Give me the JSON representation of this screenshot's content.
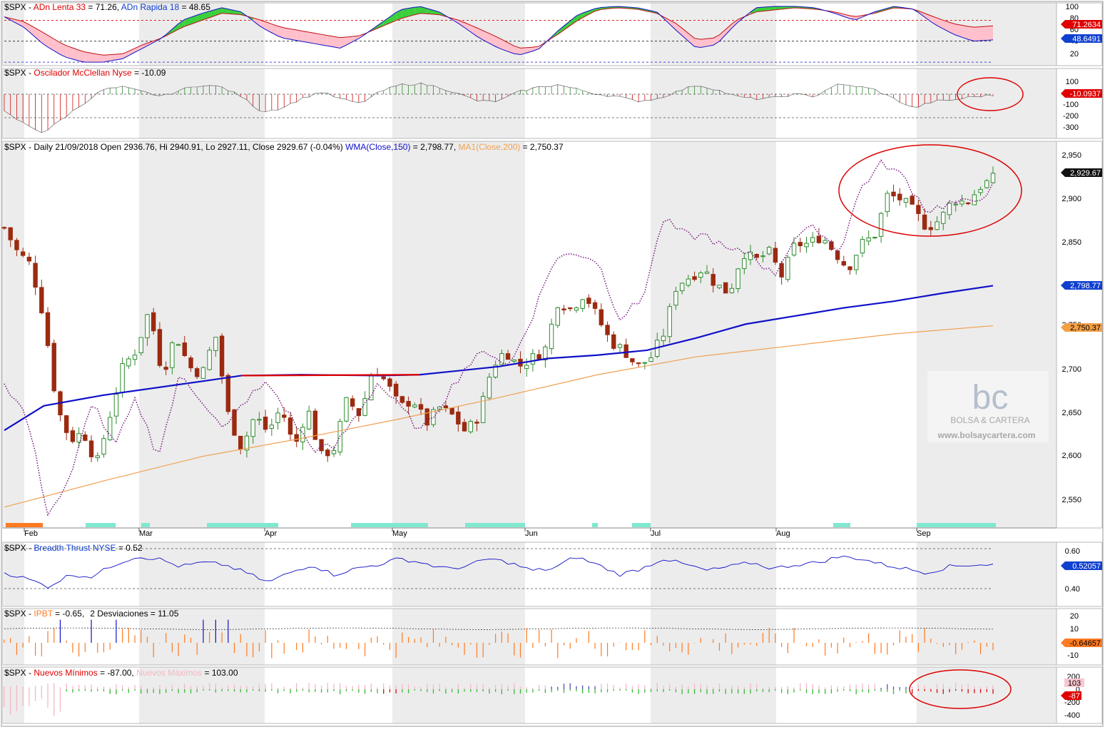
{
  "colors": {
    "up": "#2e8b2e",
    "down": "#9b2a10",
    "wma": "#1010c8",
    "ma": "#f0a050",
    "dotted": "#7a1a80",
    "panel_border": "#b8b8b8",
    "shade": "#ececec",
    "red_mark": "#dd0000",
    "label_red": "#e00000",
    "label_blue": "#1040d0",
    "label_black": "#111111",
    "label_orange": "#f3a045",
    "cyan": "#7fe8d0",
    "orange_bar": "#ff7a20"
  },
  "panels": {
    "adn": {
      "title_prefix": "$SPX - ",
      "title_a": "ADn Lenta 33",
      "title_a_val": " = 71.26, ",
      "title_b": "ADn Rapida 18",
      "title_b_val": " = 48.65",
      "ticks": [
        "100",
        "80",
        "60",
        "40",
        "20"
      ],
      "label_lenta": "71.2634",
      "label_rapida": "48.6491"
    },
    "mcclellan": {
      "title_prefix": "$SPX - ",
      "title_a": "Oscilador McClellan Nyse",
      "title_a_val": " = -10.09",
      "ticks": [
        "100",
        "0",
        "-100",
        "-200",
        "-300"
      ],
      "label_value": "-10.0937"
    },
    "price": {
      "title_prefix": "$SPX - Daily 21/09/2018 Open 2936.76, Hi 2940.91, Lo 2927.11, Close 2929.67 (-0.04%) ",
      "title_wma": "WMA(Close,150)",
      "title_wma_val": " = 2,798.77, ",
      "title_ma": "MA1(Close,200)",
      "title_ma_val": " = 2,750.37",
      "ticks": [
        "2,950",
        "2,900",
        "2,850",
        "2,800",
        "2,750",
        "2,700",
        "2,650",
        "2,600",
        "2,550"
      ],
      "label_close": "2,929.67",
      "label_wma": "2,798.77",
      "label_ma": "2,750.37",
      "months": [
        "Feb",
        "Mar",
        "Apr",
        "May",
        "Jun",
        "Jul",
        "Aug",
        "Sep"
      ],
      "watermark_logo": "bc",
      "watermark_name": "BOLSA & CARTERA",
      "watermark_url": "www.bolsaycartera.com"
    },
    "breadth": {
      "title_prefix": "$SPX - ",
      "title_a": "Breadth Thrust NYSE",
      "title_a_val": " = 0.52",
      "ticks": [
        "0.60",
        "0.50",
        "0.40"
      ],
      "label_value": "0.52057"
    },
    "ipbt": {
      "title_prefix": "$SPX - ",
      "title_a": "IPBT",
      "title_a_val": " = -0.65,",
      "title_b": "2 Desviaciones",
      "title_b_val": " = 11.05",
      "ticks": [
        "20",
        "10",
        "0",
        "-10"
      ],
      "label_value": "-0.64657"
    },
    "nuevos": {
      "title_prefix": "$SPX - ",
      "title_a": "Nuevos Mínimos",
      "title_a_val": " = -87.00, ",
      "title_b": "Nuevos Máximos",
      "title_b_val": " = 103.00",
      "ticks": [
        "200",
        "0",
        "-200",
        "-400"
      ],
      "label_max": "103",
      "label_min": "-87"
    }
  },
  "chart_data": {
    "type": "candlestick",
    "title": "$SPX - Daily 21/09/2018 Open 2936.76, Hi 2940.91, Lo 2927.11, Close 2929.67 (-0.04%)",
    "period_label": "Daily",
    "x_months": [
      "Feb",
      "Mar",
      "Apr",
      "May",
      "Jun",
      "Jul",
      "Aug",
      "Sep"
    ],
    "ylim": [
      2520,
      2960
    ],
    "y_ticks": [
      2550,
      2600,
      2650,
      2700,
      2750,
      2800,
      2850,
      2900,
      2950
    ],
    "last_bar": {
      "date": "21/09/2018",
      "open": 2936.76,
      "high": 2940.91,
      "low": 2927.11,
      "close": 2929.67,
      "change_pct": -0.04
    },
    "close_anchors": [
      2870,
      2840,
      2825,
      2760,
      2650,
      2610,
      2620,
      2580,
      2640,
      2700,
      2720,
      2770,
      2690,
      2740,
      2700,
      2690,
      2740,
      2640,
      2600,
      2640,
      2620,
      2650,
      2600,
      2650,
      2590,
      2600,
      2660,
      2640,
      2700,
      2680,
      2650,
      2660,
      2630,
      2650,
      2640,
      2620,
      2640,
      2700,
      2720,
      2700,
      2710,
      2720,
      2780,
      2770,
      2790,
      2760,
      2730,
      2720,
      2700,
      2710,
      2740,
      2800,
      2810,
      2820,
      2800,
      2790,
      2840,
      2830,
      2840,
      2810,
      2850,
      2850,
      2860,
      2840,
      2820,
      2850,
      2860,
      2910,
      2905,
      2890,
      2870,
      2880,
      2905,
      2900,
      2920,
      2930
    ],
    "series": [
      {
        "name": "WMA(Close,150)",
        "x": [
          0,
          0.04,
          0.1,
          0.2,
          0.24,
          0.3,
          0.38,
          0.42,
          0.5,
          0.55,
          0.6,
          0.65,
          0.7,
          0.75,
          0.8,
          0.85,
          0.9,
          0.95,
          1.0
        ],
        "values": [
          2622,
          2652,
          2665,
          2682,
          2689,
          2690,
          2689,
          2690,
          2700,
          2710,
          2714,
          2720,
          2735,
          2752,
          2762,
          2772,
          2780,
          2790,
          2799
        ]
      },
      {
        "name": "MA1(Close,200)",
        "x": [
          0,
          0.1,
          0.2,
          0.3,
          0.4,
          0.5,
          0.6,
          0.7,
          0.8,
          0.9,
          1.0
        ],
        "values": [
          2528,
          2560,
          2590,
          2612,
          2636,
          2662,
          2690,
          2712,
          2726,
          2740,
          2750
        ]
      }
    ],
    "indicator_values": {
      "adn_lenta_33": 71.26,
      "adn_rapida_18": 48.65,
      "mcclellan_nyse": -10.09,
      "breadth_thrust_nyse": 0.52,
      "ipbt": -0.65,
      "ipbt_2_desviaciones": 11.05,
      "nuevos_minimos": -87.0,
      "nuevos_maximos": 103.0
    },
    "panel_ranges": {
      "adn": [
        15,
        105
      ],
      "mcclellan": [
        -330,
        130
      ],
      "breadth": [
        0.37,
        0.63
      ],
      "ipbt": [
        -15,
        25
      ],
      "nuevos": [
        -420,
        230
      ]
    }
  }
}
